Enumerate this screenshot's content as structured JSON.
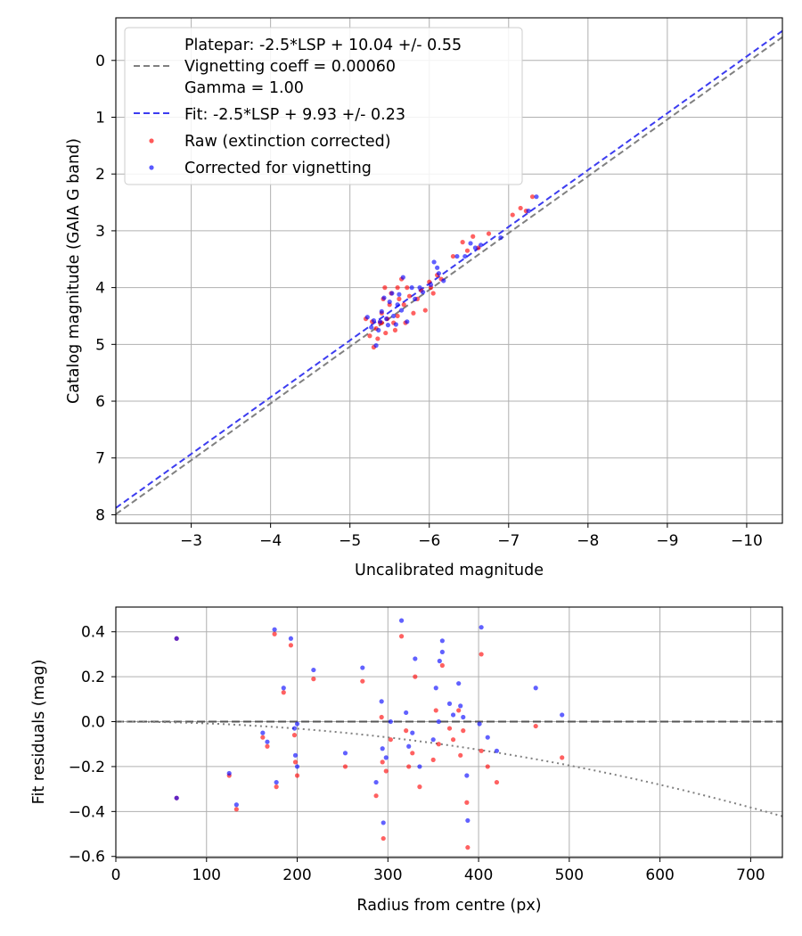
{
  "colors": {
    "raw": "#ff0000",
    "corrected": "#0000ff",
    "platepar_line": "#808080",
    "fit_line": "#3c3cf0",
    "grid": "#b0b0b0",
    "zero_line": "#555555",
    "vignetting_curve": "#808080"
  },
  "chart_data": [
    {
      "type": "scatter",
      "title": "",
      "xlabel": "Uncalibrated magnitude",
      "ylabel": "Catalog magnitude (GAIA G band)",
      "xlim": [
        -2.05,
        -10.45
      ],
      "ylim": [
        8.15,
        -0.75
      ],
      "xticks": [
        -3,
        -4,
        -5,
        -6,
        -7,
        -8,
        -9,
        -10
      ],
      "xtick_labels": [
        "−3",
        "−4",
        "−5",
        "−6",
        "−7",
        "−8",
        "−9",
        "−10"
      ],
      "yticks": [
        0,
        1,
        2,
        3,
        4,
        5,
        6,
        7,
        8
      ],
      "ytick_labels": [
        "0",
        "1",
        "2",
        "3",
        "4",
        "5",
        "6",
        "7",
        "8"
      ],
      "grid": true,
      "legend_position": "top-left",
      "legend": [
        {
          "label": "Platepar: -2.5*LSP + 10.04 +/- 0.55",
          "marker": "none"
        },
        {
          "label": "Vignetting coeff = 0.00060",
          "marker": "dashed-gray"
        },
        {
          "label": "Gamma = 1.00",
          "marker": "none"
        },
        {
          "label": "Fit: -2.5*LSP + 9.93 +/- 0.23",
          "marker": "dashed-blue"
        },
        {
          "label": "Raw (extinction corrected)",
          "marker": "red-dot"
        },
        {
          "label": "Corrected for vignetting",
          "marker": "blue-dot"
        }
      ],
      "lines": [
        {
          "name": "Platepar",
          "intercept": 10.04,
          "slope": 1.0,
          "style": "dashed",
          "color_key": "platepar_line"
        },
        {
          "name": "Fit",
          "intercept": 9.93,
          "slope": 1.0,
          "style": "dashed",
          "color_key": "fit_line"
        }
      ],
      "series": [
        {
          "name": "Raw (extinction corrected)",
          "color_key": "raw",
          "points": [
            [
              -5.2,
              4.55
            ],
            [
              -5.25,
              4.85
            ],
            [
              -5.28,
              4.6
            ],
            [
              -5.3,
              5.05
            ],
            [
              -5.33,
              4.72
            ],
            [
              -5.35,
              4.9
            ],
            [
              -5.38,
              4.62
            ],
            [
              -5.4,
              4.45
            ],
            [
              -5.42,
              4.2
            ],
            [
              -5.44,
              4.0
            ],
            [
              -5.45,
              4.8
            ],
            [
              -5.47,
              4.55
            ],
            [
              -5.5,
              4.3
            ],
            [
              -5.52,
              4.1
            ],
            [
              -5.55,
              4.62
            ],
            [
              -5.57,
              4.75
            ],
            [
              -5.6,
              4.5
            ],
            [
              -5.62,
              4.2
            ],
            [
              -5.65,
              3.85
            ],
            [
              -5.68,
              4.3
            ],
            [
              -5.7,
              4.62
            ],
            [
              -5.72,
              4.0
            ],
            [
              -5.75,
              4.15
            ],
            [
              -5.8,
              4.45
            ],
            [
              -5.85,
              4.2
            ],
            [
              -5.9,
              4.05
            ],
            [
              -5.95,
              4.4
            ],
            [
              -6.0,
              3.9
            ],
            [
              -6.02,
              4.0
            ],
            [
              -6.05,
              4.1
            ],
            [
              -6.1,
              3.78
            ],
            [
              -6.15,
              3.85
            ],
            [
              -6.3,
              3.45
            ],
            [
              -6.42,
              3.2
            ],
            [
              -6.48,
              3.35
            ],
            [
              -6.55,
              3.1
            ],
            [
              -6.62,
              3.3
            ],
            [
              -6.75,
              3.05
            ],
            [
              -7.05,
              2.72
            ],
            [
              -7.15,
              2.6
            ],
            [
              -7.22,
              2.65
            ],
            [
              -7.3,
              2.4
            ],
            [
              -5.4,
              4.62
            ],
            [
              -5.6,
              4.0
            ]
          ]
        },
        {
          "name": "Corrected for vignetting",
          "color_key": "corrected",
          "points": [
            [
              -5.22,
              4.52
            ],
            [
              -5.27,
              4.7
            ],
            [
              -5.3,
              4.58
            ],
            [
              -5.33,
              5.02
            ],
            [
              -5.36,
              4.75
            ],
            [
              -5.38,
              4.6
            ],
            [
              -5.4,
              4.42
            ],
            [
              -5.43,
              4.18
            ],
            [
              -5.46,
              4.55
            ],
            [
              -5.48,
              4.66
            ],
            [
              -5.5,
              4.25
            ],
            [
              -5.53,
              4.1
            ],
            [
              -5.55,
              4.5
            ],
            [
              -5.58,
              4.65
            ],
            [
              -5.6,
              4.3
            ],
            [
              -5.62,
              4.12
            ],
            [
              -5.65,
              4.4
            ],
            [
              -5.67,
              3.82
            ],
            [
              -5.72,
              4.6
            ],
            [
              -5.78,
              4.0
            ],
            [
              -5.82,
              4.2
            ],
            [
              -5.88,
              4.0
            ],
            [
              -5.92,
              4.08
            ],
            [
              -6.02,
              3.95
            ],
            [
              -6.06,
              3.55
            ],
            [
              -6.1,
              3.65
            ],
            [
              -6.12,
              3.75
            ],
            [
              -6.18,
              3.88
            ],
            [
              -6.35,
              3.45
            ],
            [
              -6.45,
              3.45
            ],
            [
              -6.52,
              3.22
            ],
            [
              -6.58,
              3.3
            ],
            [
              -6.65,
              3.25
            ],
            [
              -6.9,
              3.12
            ],
            [
              -7.25,
              2.65
            ],
            [
              -7.35,
              2.4
            ]
          ]
        }
      ]
    },
    {
      "type": "scatter",
      "title": "",
      "xlabel": "Radius from centre (px)",
      "ylabel": "Fit residuals (mag)",
      "xlim": [
        0,
        735
      ],
      "ylim": [
        -0.605,
        0.51
      ],
      "xticks": [
        0,
        100,
        200,
        300,
        400,
        500,
        600,
        700
      ],
      "xtick_labels": [
        "0",
        "100",
        "200",
        "300",
        "400",
        "500",
        "600",
        "700"
      ],
      "yticks": [
        -0.6,
        -0.4,
        -0.2,
        0.0,
        0.2,
        0.4
      ],
      "ytick_labels": [
        "−0.6",
        "−0.4",
        "−0.2",
        "0.0",
        "0.2",
        "0.4"
      ],
      "grid": true,
      "reference_lines": [
        {
          "name": "zero",
          "y": 0.0,
          "style": "dashed",
          "color_key": "zero_line"
        },
        {
          "name": "vignetting",
          "coefficient": 0.0006,
          "style": "dotted",
          "color_key": "vignetting_curve"
        }
      ],
      "series": [
        {
          "name": "Raw (extinction corrected)",
          "color_key": "raw",
          "points": [
            [
              67,
              0.37
            ],
            [
              67,
              -0.34
            ],
            [
              125,
              -0.24
            ],
            [
              133,
              -0.39
            ],
            [
              162,
              -0.07
            ],
            [
              167,
              -0.11
            ],
            [
              175,
              0.39
            ],
            [
              177,
              -0.29
            ],
            [
              185,
              0.13
            ],
            [
              193,
              0.34
            ],
            [
              197,
              -0.06
            ],
            [
              198,
              -0.18
            ],
            [
              200,
              -0.24
            ],
            [
              218,
              0.19
            ],
            [
              253,
              -0.2
            ],
            [
              272,
              0.18
            ],
            [
              287,
              -0.33
            ],
            [
              293,
              0.02
            ],
            [
              294,
              -0.18
            ],
            [
              295,
              -0.52
            ],
            [
              298,
              -0.22
            ],
            [
              303,
              -0.08
            ],
            [
              315,
              0.38
            ],
            [
              320,
              -0.04
            ],
            [
              323,
              -0.2
            ],
            [
              327,
              -0.14
            ],
            [
              330,
              0.2
            ],
            [
              335,
              -0.29
            ],
            [
              350,
              -0.17
            ],
            [
              353,
              0.05
            ],
            [
              356,
              -0.1
            ],
            [
              360,
              0.25
            ],
            [
              368,
              -0.03
            ],
            [
              372,
              -0.08
            ],
            [
              378,
              0.05
            ],
            [
              380,
              -0.15
            ],
            [
              383,
              -0.04
            ],
            [
              387,
              -0.36
            ],
            [
              388,
              -0.56
            ],
            [
              403,
              0.3
            ],
            [
              403,
              -0.13
            ],
            [
              410,
              -0.2
            ],
            [
              420,
              -0.27
            ],
            [
              463,
              -0.02
            ],
            [
              492,
              -0.16
            ]
          ]
        },
        {
          "name": "Corrected for vignetting",
          "color_key": "corrected",
          "points": [
            [
              67,
              0.37
            ],
            [
              67,
              -0.34
            ],
            [
              125,
              -0.23
            ],
            [
              133,
              -0.37
            ],
            [
              162,
              -0.05
            ],
            [
              167,
              -0.09
            ],
            [
              175,
              0.41
            ],
            [
              177,
              -0.27
            ],
            [
              185,
              0.15
            ],
            [
              193,
              0.37
            ],
            [
              197,
              -0.03
            ],
            [
              198,
              -0.15
            ],
            [
              200,
              -0.2
            ],
            [
              200,
              -0.01
            ],
            [
              218,
              0.23
            ],
            [
              253,
              -0.14
            ],
            [
              272,
              0.24
            ],
            [
              287,
              -0.27
            ],
            [
              293,
              0.09
            ],
            [
              294,
              -0.12
            ],
            [
              295,
              -0.45
            ],
            [
              298,
              -0.16
            ],
            [
              303,
              0.0
            ],
            [
              315,
              0.45
            ],
            [
              320,
              0.04
            ],
            [
              323,
              -0.11
            ],
            [
              327,
              -0.05
            ],
            [
              330,
              0.28
            ],
            [
              335,
              -0.2
            ],
            [
              350,
              -0.08
            ],
            [
              353,
              0.15
            ],
            [
              356,
              0.0
            ],
            [
              360,
              0.36
            ],
            [
              360,
              0.31
            ],
            [
              357,
              0.27
            ],
            [
              368,
              0.08
            ],
            [
              372,
              0.03
            ],
            [
              378,
              0.17
            ],
            [
              380,
              0.07
            ],
            [
              383,
              0.02
            ],
            [
              387,
              -0.24
            ],
            [
              388,
              -0.44
            ],
            [
              403,
              0.42
            ],
            [
              401,
              -0.01
            ],
            [
              410,
              -0.07
            ],
            [
              420,
              -0.13
            ],
            [
              463,
              0.15
            ],
            [
              492,
              0.03
            ]
          ]
        }
      ]
    }
  ]
}
